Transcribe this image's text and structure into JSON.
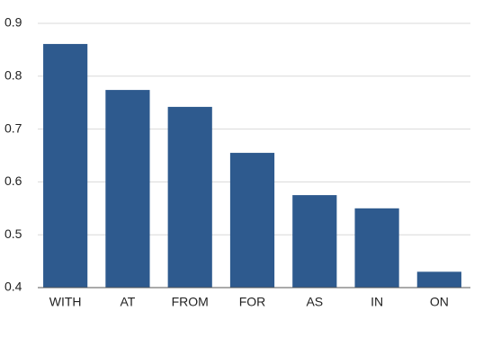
{
  "chart_data": {
    "type": "bar",
    "categories": [
      "WITH",
      "AT",
      "FROM",
      "FOR",
      "AS",
      "IN",
      "ON"
    ],
    "values": [
      0.861,
      0.774,
      0.742,
      0.655,
      0.575,
      0.55,
      0.43
    ],
    "color": "#2e5a8e",
    "ylim": [
      0.4,
      0.9
    ],
    "yticks": [
      0.4,
      0.5,
      0.6,
      0.7,
      0.8,
      0.9
    ],
    "grid": true
  }
}
